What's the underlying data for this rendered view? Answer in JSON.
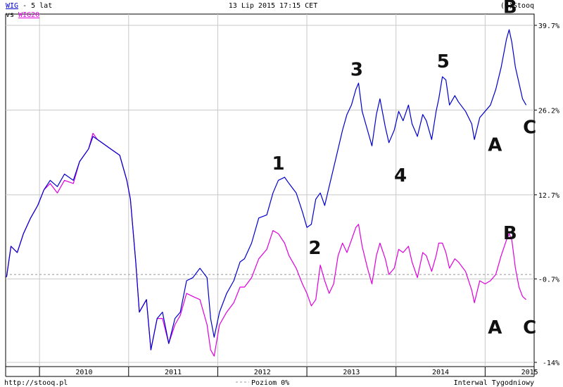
{
  "header": {
    "series1_name": "WIG",
    "series1_suffix": " - 5 lat",
    "vs_label": "vs",
    "series2_name": "WIG20",
    "datetime": "13 Lip 2015 17:15 CET",
    "copyright": "(C)Stooq"
  },
  "footer": {
    "source": "http://stooq.pl",
    "zero_level": "Poziom 0%",
    "interval": "Interwal Tygodniowy"
  },
  "colors": {
    "wig": "#0000cc",
    "wig20": "#dd00dd",
    "grid": "#c8c8c8",
    "annotation": "#111111"
  },
  "chart_data": {
    "type": "line",
    "title": "",
    "x_tick_labels": [
      "2010",
      "2011",
      "2012",
      "2013",
      "2014",
      "2015"
    ],
    "y_tick_labels": [
      "39.7%",
      "26.2%",
      "12.7%",
      "-0.7%",
      "-14%"
    ],
    "y_ticks": [
      39.7,
      26.2,
      12.7,
      -0.7,
      -14
    ],
    "ylim": [
      -14,
      39.7
    ],
    "xlim": [
      2009.62,
      2015.55
    ],
    "x_ticks": [
      2010,
      2011,
      2012,
      2013,
      2014,
      2015
    ],
    "grid": true,
    "zero_line_value": 0,
    "series": [
      {
        "name": "WIG",
        "color": "#0000cc",
        "points": [
          [
            2009.63,
            -0.4
          ],
          [
            2009.68,
            4.5
          ],
          [
            2009.75,
            3.5
          ],
          [
            2009.82,
            6.5
          ],
          [
            2009.9,
            9
          ],
          [
            2009.98,
            11
          ],
          [
            2010.05,
            13.5
          ],
          [
            2010.12,
            15
          ],
          [
            2010.2,
            14
          ],
          [
            2010.28,
            16
          ],
          [
            2010.38,
            15
          ],
          [
            2010.45,
            18
          ],
          [
            2010.55,
            20
          ],
          [
            2010.6,
            22
          ],
          [
            2010.65,
            21.5
          ],
          [
            2010.7,
            21
          ],
          [
            2010.8,
            20
          ],
          [
            2010.9,
            19
          ],
          [
            2010.98,
            15
          ],
          [
            2011.02,
            12
          ],
          [
            2011.08,
            2
          ],
          [
            2011.12,
            -6
          ],
          [
            2011.2,
            -4
          ],
          [
            2011.25,
            -12
          ],
          [
            2011.32,
            -7
          ],
          [
            2011.38,
            -6
          ],
          [
            2011.45,
            -11
          ],
          [
            2011.52,
            -7
          ],
          [
            2011.58,
            -6
          ],
          [
            2011.65,
            -1
          ],
          [
            2011.72,
            -0.5
          ],
          [
            2011.8,
            1
          ],
          [
            2011.88,
            -0.5
          ],
          [
            2011.92,
            -7
          ],
          [
            2011.96,
            -10
          ],
          [
            2012.02,
            -6
          ],
          [
            2012.1,
            -3
          ],
          [
            2012.18,
            -1
          ],
          [
            2012.25,
            2
          ],
          [
            2012.3,
            2.5
          ],
          [
            2012.38,
            5
          ],
          [
            2012.46,
            9
          ],
          [
            2012.55,
            9.5
          ],
          [
            2012.62,
            13
          ],
          [
            2012.68,
            15
          ],
          [
            2012.75,
            15.5
          ],
          [
            2012.8,
            14.5
          ],
          [
            2012.88,
            13
          ],
          [
            2012.95,
            10
          ],
          [
            2013.0,
            7.5
          ],
          [
            2013.05,
            8
          ],
          [
            2013.1,
            12
          ],
          [
            2013.15,
            13
          ],
          [
            2013.2,
            11
          ],
          [
            2013.25,
            14
          ],
          [
            2013.3,
            17
          ],
          [
            2013.35,
            20
          ],
          [
            2013.4,
            23
          ],
          [
            2013.45,
            25.5
          ],
          [
            2013.5,
            27
          ],
          [
            2013.55,
            29.5
          ],
          [
            2013.58,
            30.5
          ],
          [
            2013.62,
            26
          ],
          [
            2013.68,
            23
          ],
          [
            2013.73,
            20.5
          ],
          [
            2013.78,
            25.5
          ],
          [
            2013.82,
            28
          ],
          [
            2013.88,
            23.5
          ],
          [
            2013.92,
            21
          ],
          [
            2013.98,
            23
          ],
          [
            2014.03,
            26
          ],
          [
            2014.08,
            24.5
          ],
          [
            2014.14,
            27
          ],
          [
            2014.18,
            24
          ],
          [
            2014.24,
            22
          ],
          [
            2014.3,
            25.5
          ],
          [
            2014.34,
            24.5
          ],
          [
            2014.4,
            21.5
          ],
          [
            2014.45,
            26
          ],
          [
            2014.48,
            28
          ],
          [
            2014.52,
            31.5
          ],
          [
            2014.56,
            31
          ],
          [
            2014.6,
            27
          ],
          [
            2014.66,
            28.5
          ],
          [
            2014.7,
            27.5
          ],
          [
            2014.78,
            26
          ],
          [
            2014.85,
            24
          ],
          [
            2014.88,
            21.5
          ],
          [
            2014.94,
            25
          ],
          [
            2015.0,
            26
          ],
          [
            2015.06,
            27
          ],
          [
            2015.12,
            29.5
          ],
          [
            2015.18,
            33
          ],
          [
            2015.24,
            37.5
          ],
          [
            2015.27,
            39
          ],
          [
            2015.3,
            37
          ],
          [
            2015.34,
            33
          ],
          [
            2015.38,
            30.5
          ],
          [
            2015.42,
            28
          ],
          [
            2015.46,
            27
          ]
        ]
      },
      {
        "name": "WIG20",
        "color": "#dd00dd",
        "points": [
          [
            2009.63,
            -0.4
          ],
          [
            2009.68,
            4.5
          ],
          [
            2009.75,
            3.5
          ],
          [
            2009.82,
            6.5
          ],
          [
            2009.9,
            9
          ],
          [
            2009.98,
            11
          ],
          [
            2010.05,
            13.5
          ],
          [
            2010.12,
            14.5
          ],
          [
            2010.2,
            13
          ],
          [
            2010.28,
            15
          ],
          [
            2010.38,
            14.5
          ],
          [
            2010.45,
            18
          ],
          [
            2010.55,
            20
          ],
          [
            2010.6,
            22.5
          ],
          [
            2010.65,
            21.5
          ],
          [
            2010.7,
            21
          ],
          [
            2010.8,
            20
          ],
          [
            2010.9,
            19
          ],
          [
            2010.98,
            15
          ],
          [
            2011.02,
            12
          ],
          [
            2011.08,
            2
          ],
          [
            2011.12,
            -6
          ],
          [
            2011.2,
            -4
          ],
          [
            2011.25,
            -12
          ],
          [
            2011.32,
            -7
          ],
          [
            2011.38,
            -7
          ],
          [
            2011.45,
            -11
          ],
          [
            2011.52,
            -8
          ],
          [
            2011.58,
            -6.5
          ],
          [
            2011.65,
            -3
          ],
          [
            2011.72,
            -3.5
          ],
          [
            2011.8,
            -4
          ],
          [
            2011.88,
            -8
          ],
          [
            2011.92,
            -12
          ],
          [
            2011.96,
            -13
          ],
          [
            2012.02,
            -8
          ],
          [
            2012.1,
            -6
          ],
          [
            2012.18,
            -4.5
          ],
          [
            2012.25,
            -2
          ],
          [
            2012.3,
            -2
          ],
          [
            2012.38,
            -0.5
          ],
          [
            2012.46,
            2.5
          ],
          [
            2012.55,
            4
          ],
          [
            2012.62,
            7
          ],
          [
            2012.68,
            6.5
          ],
          [
            2012.75,
            5
          ],
          [
            2012.8,
            3
          ],
          [
            2012.88,
            1
          ],
          [
            2012.95,
            -1.5
          ],
          [
            2013.0,
            -3
          ],
          [
            2013.05,
            -5
          ],
          [
            2013.1,
            -4
          ],
          [
            2013.15,
            1.5
          ],
          [
            2013.2,
            -1
          ],
          [
            2013.25,
            -3
          ],
          [
            2013.3,
            -1.5
          ],
          [
            2013.35,
            3
          ],
          [
            2013.4,
            5
          ],
          [
            2013.45,
            3.5
          ],
          [
            2013.5,
            5.5
          ],
          [
            2013.55,
            7.5
          ],
          [
            2013.58,
            8
          ],
          [
            2013.62,
            4.5
          ],
          [
            2013.68,
            1
          ],
          [
            2013.73,
            -1.5
          ],
          [
            2013.78,
            3
          ],
          [
            2013.82,
            5
          ],
          [
            2013.88,
            2.5
          ],
          [
            2013.92,
            0
          ],
          [
            2013.98,
            1
          ],
          [
            2014.03,
            4
          ],
          [
            2014.08,
            3.5
          ],
          [
            2014.14,
            4.5
          ],
          [
            2014.18,
            2
          ],
          [
            2014.24,
            -0.5
          ],
          [
            2014.3,
            3.5
          ],
          [
            2014.34,
            3
          ],
          [
            2014.4,
            0.5
          ],
          [
            2014.45,
            3
          ],
          [
            2014.48,
            5
          ],
          [
            2014.52,
            5
          ],
          [
            2014.56,
            3.5
          ],
          [
            2014.6,
            1
          ],
          [
            2014.66,
            2.5
          ],
          [
            2014.7,
            2
          ],
          [
            2014.78,
            0.5
          ],
          [
            2014.85,
            -2.5
          ],
          [
            2014.88,
            -4.5
          ],
          [
            2014.94,
            -1
          ],
          [
            2015.0,
            -1.5
          ],
          [
            2015.06,
            -1
          ],
          [
            2015.12,
            0
          ],
          [
            2015.18,
            3
          ],
          [
            2015.24,
            5.5
          ],
          [
            2015.27,
            6.5
          ],
          [
            2015.3,
            5.5
          ],
          [
            2015.34,
            1
          ],
          [
            2015.38,
            -2
          ],
          [
            2015.42,
            -3.5
          ],
          [
            2015.46,
            -4
          ]
        ]
      }
    ],
    "annotations": [
      {
        "text": "B",
        "x": 2015.28,
        "y": 42.7
      },
      {
        "text": "3",
        "x": 2013.56,
        "y": 32.7
      },
      {
        "text": "5",
        "x": 2014.53,
        "y": 34.0
      },
      {
        "text": "C",
        "x": 2015.5,
        "y": 23.5
      },
      {
        "text": "A",
        "x": 2015.11,
        "y": 20.7
      },
      {
        "text": "1",
        "x": 2012.68,
        "y": 17.7
      },
      {
        "text": "4",
        "x": 2014.05,
        "y": 15.8
      },
      {
        "text": "B",
        "x": 2015.28,
        "y": 6.6
      },
      {
        "text": "2",
        "x": 2013.09,
        "y": 4.3
      },
      {
        "text": "A",
        "x": 2015.11,
        "y": -8.4
      },
      {
        "text": "C",
        "x": 2015.5,
        "y": -8.4
      }
    ]
  }
}
